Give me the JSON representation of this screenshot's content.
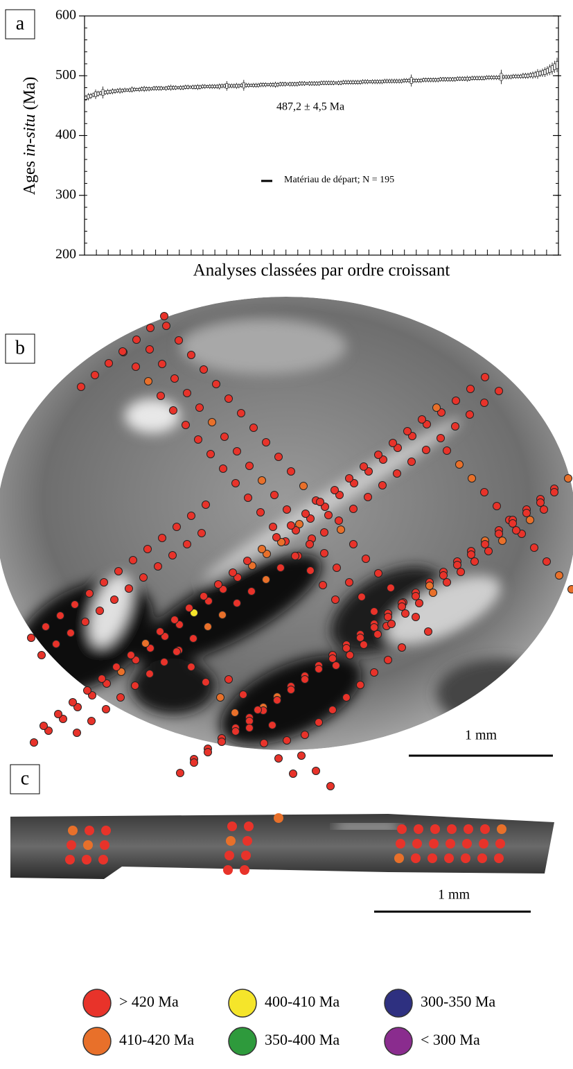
{
  "panel_labels": [
    "a",
    "b",
    "c"
  ],
  "chart_data": {
    "type": "errorbar",
    "ylabel_parts": [
      "Ages ",
      "in-situ",
      " (Ma)"
    ],
    "xlabel": "Analyses classées par ordre croissant",
    "annotation": "487,2 ± 4,5 Ma",
    "ylim": [
      200,
      600
    ],
    "yticks": [
      200,
      300,
      400,
      500,
      600
    ],
    "series": [
      {
        "name": "Matériau de départ; N = 195",
        "color": "#000000",
        "values": [
          463,
          465,
          466,
          468,
          469,
          470,
          471,
          472,
          472,
          473,
          473,
          474,
          474,
          475,
          475,
          475,
          476,
          476,
          476,
          477,
          477,
          477,
          477,
          478,
          478,
          478,
          478,
          478,
          479,
          479,
          479,
          479,
          479,
          479,
          480,
          480,
          480,
          480,
          480,
          480,
          480,
          481,
          481,
          481,
          481,
          481,
          481,
          481,
          482,
          482,
          482,
          482,
          482,
          482,
          482,
          482,
          483,
          483,
          483,
          483,
          483,
          483,
          483,
          483,
          484,
          484,
          484,
          484,
          484,
          484,
          484,
          484,
          485,
          485,
          485,
          485,
          485,
          485,
          485,
          485,
          486,
          486,
          486,
          486,
          486,
          486,
          486,
          486,
          487,
          487,
          487,
          487,
          487,
          487,
          487,
          487,
          487,
          488,
          488,
          488,
          488,
          488,
          488,
          488,
          488,
          488,
          489,
          489,
          489,
          489,
          489,
          489,
          489,
          489,
          490,
          490,
          490,
          490,
          490,
          490,
          490,
          490,
          490,
          491,
          491,
          491,
          491,
          491,
          491,
          491,
          491,
          492,
          492,
          492,
          492,
          492,
          492,
          492,
          492,
          493,
          493,
          493,
          493,
          493,
          493,
          493,
          494,
          494,
          494,
          494,
          494,
          494,
          494,
          495,
          495,
          495,
          495,
          495,
          495,
          496,
          496,
          496,
          496,
          496,
          496,
          497,
          497,
          497,
          497,
          497,
          497,
          498,
          498,
          498,
          498,
          498,
          499,
          499,
          499,
          499,
          500,
          500,
          500,
          501,
          501,
          502,
          503,
          504,
          505,
          506,
          508,
          510,
          512,
          515,
          518
        ],
        "errors": [
          5,
          6,
          5,
          4,
          8,
          5,
          4,
          10,
          4,
          5,
          4,
          5,
          4,
          4,
          5,
          4,
          4,
          3,
          4,
          5,
          4,
          3,
          4,
          4,
          5,
          4,
          4,
          3,
          4,
          4,
          4,
          4,
          3,
          4,
          4,
          5,
          4,
          4,
          3,
          4,
          4,
          4,
          4,
          3,
          4,
          4,
          5,
          4,
          4,
          4,
          3,
          4,
          4,
          4,
          4,
          5,
          4,
          4,
          8,
          4,
          4,
          4,
          5,
          4,
          4,
          9,
          4,
          4,
          3,
          4,
          4,
          4,
          4,
          4,
          4,
          3,
          4,
          4,
          5,
          4,
          4,
          4,
          4,
          3,
          4,
          4,
          4,
          4,
          4,
          4,
          4,
          3,
          4,
          4,
          4,
          4,
          4,
          4,
          4,
          4,
          4,
          4,
          4,
          3,
          4,
          4,
          4,
          4,
          4,
          4,
          4,
          4,
          4,
          4,
          4,
          4,
          4,
          3,
          4,
          4,
          4,
          4,
          4,
          4,
          4,
          4,
          4,
          4,
          4,
          4,
          4,
          4,
          4,
          4,
          10,
          4,
          4,
          4,
          4,
          4,
          4,
          4,
          4,
          4,
          4,
          4,
          4,
          4,
          4,
          4,
          4,
          4,
          4,
          4,
          4,
          4,
          4,
          5,
          4,
          4,
          4,
          4,
          4,
          4,
          4,
          4,
          4,
          4,
          4,
          4,
          4,
          12,
          4,
          4,
          4,
          4,
          4,
          4,
          4,
          4,
          5,
          5,
          5,
          5,
          6,
          6,
          8,
          6,
          7,
          8,
          8,
          9,
          10,
          10,
          12
        ]
      }
    ]
  },
  "scale_bars": [
    "1 mm",
    "1 mm"
  ],
  "legend": [
    {
      "label": "> 420 Ma",
      "color": "#e8332a"
    },
    {
      "label": "400-410 Ma",
      "color": "#f5e52a"
    },
    {
      "label": "300-350 Ma",
      "color": "#2e3080"
    },
    {
      "label": "410-420 Ma",
      "color": "#e8702a"
    },
    {
      "label": "350-400 Ma",
      "color": "#2e9a3c"
    },
    {
      "label": "< 300 Ma",
      "color": "#8a2c8e"
    }
  ]
}
